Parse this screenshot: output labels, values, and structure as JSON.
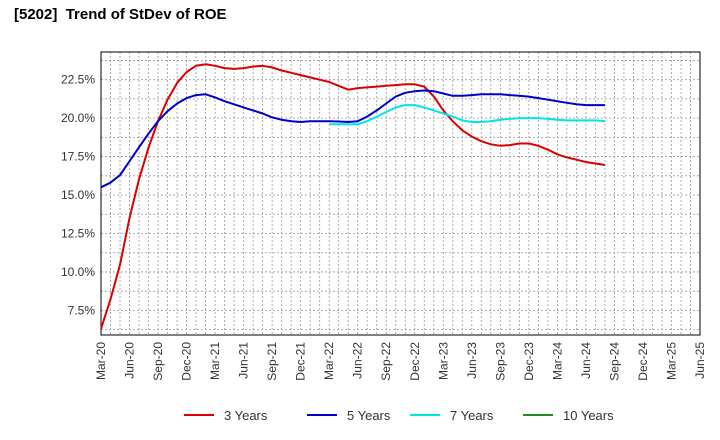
{
  "title": "[5202]  Trend of StDev of ROE",
  "chart_data": {
    "type": "line",
    "title": "[5202]  Trend of StDev of ROE",
    "xlabel": "",
    "ylabel": "",
    "x_ticks": [
      "Mar-20",
      "Jun-20",
      "Sep-20",
      "Dec-20",
      "Mar-21",
      "Jun-21",
      "Sep-21",
      "Dec-21",
      "Mar-22",
      "Jun-22",
      "Sep-22",
      "Dec-22",
      "Mar-23",
      "Jun-23",
      "Sep-23",
      "Dec-23",
      "Mar-24",
      "Jun-24",
      "Sep-24",
      "Dec-24",
      "Mar-25",
      "Jun-25"
    ],
    "y_ticks": [
      "7.5%",
      "10.0%",
      "12.5%",
      "15.0%",
      "17.5%",
      "20.0%",
      "22.5%"
    ],
    "y_tick_values": [
      7.5,
      10.0,
      12.5,
      15.0,
      17.5,
      20.0,
      22.5
    ],
    "ylim": [
      5.9,
      24.3
    ],
    "grid": true,
    "legend_position": "bottom",
    "series": [
      {
        "name": "3 Years",
        "color": "#dd0000",
        "values": [
          [
            0,
            6.3
          ],
          [
            0.33,
            8.2
          ],
          [
            0.67,
            10.5
          ],
          [
            1,
            13.5
          ],
          [
            1.33,
            16.0
          ],
          [
            1.67,
            18.1
          ],
          [
            2,
            19.8
          ],
          [
            2.33,
            21.2
          ],
          [
            2.67,
            22.3
          ],
          [
            3,
            23.0
          ],
          [
            3.33,
            23.4
          ],
          [
            3.67,
            23.5
          ],
          [
            4,
            23.4
          ],
          [
            4.33,
            23.25
          ],
          [
            4.67,
            23.2
          ],
          [
            5,
            23.25
          ],
          [
            5.33,
            23.35
          ],
          [
            5.67,
            23.4
          ],
          [
            6,
            23.3
          ],
          [
            6.33,
            23.1
          ],
          [
            6.67,
            22.95
          ],
          [
            7,
            22.8
          ],
          [
            7.33,
            22.65
          ],
          [
            7.67,
            22.5
          ],
          [
            8,
            22.35
          ],
          [
            8.33,
            22.1
          ],
          [
            8.67,
            21.85
          ],
          [
            9,
            21.95
          ],
          [
            9.33,
            22.0
          ],
          [
            9.67,
            22.05
          ],
          [
            10,
            22.1
          ],
          [
            10.33,
            22.15
          ],
          [
            10.67,
            22.2
          ],
          [
            11,
            22.2
          ],
          [
            11.33,
            22.05
          ],
          [
            11.67,
            21.4
          ],
          [
            12,
            20.5
          ],
          [
            12.33,
            19.8
          ],
          [
            12.67,
            19.2
          ],
          [
            13,
            18.8
          ],
          [
            13.33,
            18.5
          ],
          [
            13.67,
            18.3
          ],
          [
            14,
            18.2
          ],
          [
            14.33,
            18.25
          ],
          [
            14.67,
            18.35
          ],
          [
            15,
            18.35
          ],
          [
            15.33,
            18.2
          ],
          [
            15.67,
            17.95
          ],
          [
            16,
            17.65
          ],
          [
            16.33,
            17.45
          ],
          [
            16.67,
            17.3
          ],
          [
            17,
            17.15
          ],
          [
            17.33,
            17.05
          ],
          [
            17.67,
            16.95
          ]
        ]
      },
      {
        "name": "5 Years",
        "color": "#0000cc",
        "values": [
          [
            0,
            15.5
          ],
          [
            0.33,
            15.8
          ],
          [
            0.67,
            16.3
          ],
          [
            1,
            17.2
          ],
          [
            1.33,
            18.1
          ],
          [
            1.67,
            19.0
          ],
          [
            2,
            19.8
          ],
          [
            2.33,
            20.45
          ],
          [
            2.67,
            20.95
          ],
          [
            3,
            21.3
          ],
          [
            3.33,
            21.5
          ],
          [
            3.67,
            21.55
          ],
          [
            4,
            21.35
          ],
          [
            4.33,
            21.1
          ],
          [
            4.67,
            20.9
          ],
          [
            5,
            20.7
          ],
          [
            5.33,
            20.5
          ],
          [
            5.67,
            20.3
          ],
          [
            6,
            20.05
          ],
          [
            6.33,
            19.9
          ],
          [
            6.67,
            19.8
          ],
          [
            7,
            19.75
          ],
          [
            7.33,
            19.8
          ],
          [
            7.67,
            19.8
          ],
          [
            8,
            19.8
          ],
          [
            8.33,
            19.78
          ],
          [
            8.67,
            19.75
          ],
          [
            9,
            19.8
          ],
          [
            9.33,
            20.1
          ],
          [
            9.67,
            20.5
          ],
          [
            10,
            20.95
          ],
          [
            10.33,
            21.4
          ],
          [
            10.67,
            21.65
          ],
          [
            11,
            21.75
          ],
          [
            11.33,
            21.8
          ],
          [
            11.67,
            21.75
          ],
          [
            12,
            21.6
          ],
          [
            12.33,
            21.45
          ],
          [
            12.67,
            21.45
          ],
          [
            13,
            21.5
          ],
          [
            13.33,
            21.55
          ],
          [
            13.67,
            21.55
          ],
          [
            14,
            21.55
          ],
          [
            14.33,
            21.5
          ],
          [
            14.67,
            21.45
          ],
          [
            15,
            21.4
          ],
          [
            15.33,
            21.3
          ],
          [
            15.67,
            21.2
          ],
          [
            16,
            21.1
          ],
          [
            16.33,
            21.0
          ],
          [
            16.67,
            20.9
          ],
          [
            17,
            20.85
          ],
          [
            17.33,
            20.85
          ],
          [
            17.67,
            20.85
          ]
        ]
      },
      {
        "name": "7 Years",
        "color": "#00e5e5",
        "values": [
          [
            8,
            19.6
          ],
          [
            8.33,
            19.6
          ],
          [
            8.67,
            19.6
          ],
          [
            9,
            19.6
          ],
          [
            9.33,
            19.8
          ],
          [
            9.67,
            20.1
          ],
          [
            10,
            20.4
          ],
          [
            10.33,
            20.7
          ],
          [
            10.67,
            20.85
          ],
          [
            11,
            20.85
          ],
          [
            11.33,
            20.7
          ],
          [
            11.67,
            20.5
          ],
          [
            12,
            20.3
          ],
          [
            12.33,
            20.1
          ],
          [
            12.67,
            19.85
          ],
          [
            13,
            19.75
          ],
          [
            13.33,
            19.75
          ],
          [
            13.67,
            19.8
          ],
          [
            14,
            19.9
          ],
          [
            14.33,
            19.95
          ],
          [
            14.67,
            20.0
          ],
          [
            15,
            20.0
          ],
          [
            15.33,
            20.0
          ],
          [
            15.67,
            19.95
          ],
          [
            16,
            19.9
          ],
          [
            16.33,
            19.85
          ],
          [
            16.67,
            19.85
          ],
          [
            17,
            19.85
          ],
          [
            17.33,
            19.85
          ],
          [
            17.67,
            19.8
          ]
        ]
      },
      {
        "name": "10 Years",
        "color": "#228b22",
        "values": []
      }
    ]
  }
}
